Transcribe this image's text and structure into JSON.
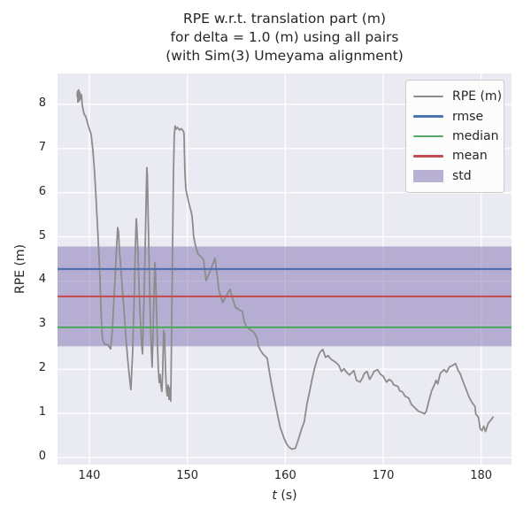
{
  "figure": {
    "title_line1": "RPE w.r.t. translation part (m)",
    "title_line2": "for delta = 1.0 (m) using all pairs",
    "title_line3": "(with Sim(3) Umeyama alignment)"
  },
  "axes": {
    "ylabel": "RPE (m)",
    "xlabel_italic": "t",
    "xlabel_suffix": " (s)",
    "x_ticks": [
      140,
      150,
      160,
      170,
      180
    ],
    "y_ticks": [
      0,
      1,
      2,
      3,
      4,
      5,
      6,
      7,
      8
    ]
  },
  "legend": {
    "items": [
      {
        "label": "RPE (m)",
        "color": "#8c8c8c",
        "kind": "line"
      },
      {
        "label": "rmse",
        "color": "#4c72b0",
        "kind": "line"
      },
      {
        "label": "median",
        "color": "#55a868",
        "kind": "line"
      },
      {
        "label": "mean",
        "color": "#c44e52",
        "kind": "line"
      },
      {
        "label": "std",
        "color": "rgba(129,114,178,0.55)",
        "kind": "patch"
      }
    ]
  },
  "colors": {
    "plot_bg": "#eaeaf2",
    "grid": "#ffffff",
    "band": "rgba(129,114,178,0.5)",
    "rpe": "#8c8c8c",
    "rmse": "#4c72b0",
    "median": "#55a868",
    "mean": "#c44e52",
    "text": "#262626"
  },
  "chart_data": {
    "type": "line",
    "title": "RPE w.r.t. translation part (m) for delta = 1.0 (m) using all pairs (with Sim(3) Umeyama alignment)",
    "xlabel": "t (s)",
    "ylabel": "RPE (m)",
    "xlim": [
      136.75,
      183.1
    ],
    "ylim": [
      -0.16,
      8.7
    ],
    "grid": true,
    "legend_position": "upper right",
    "stats": {
      "rmse": 4.27,
      "mean": 3.65,
      "median": 2.95,
      "std": 1.13
    },
    "series": [
      {
        "name": "rmse",
        "kind": "hline",
        "color": "#4c72b0",
        "value": 4.27
      },
      {
        "name": "median",
        "kind": "hline",
        "color": "#55a868",
        "value": 2.95
      },
      {
        "name": "mean",
        "kind": "hline",
        "color": "#c44e52",
        "value": 3.65
      },
      {
        "name": "std",
        "kind": "band",
        "color": "rgba(129,114,178,0.5)",
        "range": [
          2.52,
          4.78
        ]
      },
      {
        "name": "RPE (m)",
        "kind": "line",
        "color": "#8c8c8c",
        "points": [
          [
            138.74,
            8.18
          ],
          [
            138.79,
            8.3
          ],
          [
            138.83,
            8.05
          ],
          [
            138.88,
            8.25
          ],
          [
            138.92,
            8.33
          ],
          [
            138.97,
            8.08
          ],
          [
            139.01,
            8.28
          ],
          [
            139.1,
            8.12
          ],
          [
            139.19,
            8.22
          ],
          [
            139.28,
            7.97
          ],
          [
            139.46,
            7.78
          ],
          [
            139.64,
            7.72
          ],
          [
            139.91,
            7.5
          ],
          [
            140.18,
            7.32
          ],
          [
            140.36,
            6.95
          ],
          [
            140.54,
            6.45
          ],
          [
            140.63,
            6.1
          ],
          [
            140.81,
            5.35
          ],
          [
            140.99,
            4.55
          ],
          [
            141.08,
            4.1
          ],
          [
            141.17,
            3.5
          ],
          [
            141.26,
            2.95
          ],
          [
            141.35,
            2.68
          ],
          [
            141.54,
            2.57
          ],
          [
            141.72,
            2.56
          ],
          [
            141.9,
            2.56
          ],
          [
            141.99,
            2.52
          ],
          [
            142.17,
            2.46
          ],
          [
            142.35,
            2.9
          ],
          [
            142.44,
            3.3
          ],
          [
            142.62,
            4.05
          ],
          [
            142.8,
            4.85
          ],
          [
            142.89,
            5.21
          ],
          [
            142.98,
            5.1
          ],
          [
            143.07,
            4.7
          ],
          [
            143.25,
            4.2
          ],
          [
            143.52,
            3.4
          ],
          [
            143.7,
            2.8
          ],
          [
            143.97,
            2.1
          ],
          [
            144.15,
            1.7
          ],
          [
            144.24,
            1.54
          ],
          [
            144.42,
            2.4
          ],
          [
            144.6,
            3.8
          ],
          [
            144.7,
            4.8
          ],
          [
            144.79,
            5.41
          ],
          [
            144.83,
            5.3
          ],
          [
            144.97,
            4.6
          ],
          [
            145.06,
            3.9
          ],
          [
            145.15,
            3.4
          ],
          [
            145.33,
            2.6
          ],
          [
            145.42,
            2.35
          ],
          [
            145.6,
            3.8
          ],
          [
            145.74,
            5.2
          ],
          [
            145.87,
            6.57
          ],
          [
            145.92,
            6.4
          ],
          [
            146.05,
            5.0
          ],
          [
            146.14,
            4.0
          ],
          [
            146.23,
            3.1
          ],
          [
            146.32,
            2.5
          ],
          [
            146.41,
            2.05
          ],
          [
            146.5,
            2.8
          ],
          [
            146.59,
            3.6
          ],
          [
            146.68,
            4.42
          ],
          [
            146.73,
            4.3
          ],
          [
            146.86,
            3.3
          ],
          [
            146.95,
            2.6
          ],
          [
            147.04,
            2.0
          ],
          [
            147.13,
            1.7
          ],
          [
            147.22,
            1.88
          ],
          [
            147.31,
            1.62
          ],
          [
            147.4,
            1.5
          ],
          [
            147.49,
            2.0
          ],
          [
            147.58,
            2.88
          ],
          [
            147.67,
            2.8
          ],
          [
            147.77,
            2.0
          ],
          [
            147.86,
            1.55
          ],
          [
            147.95,
            1.4
          ],
          [
            148.04,
            1.64
          ],
          [
            148.13,
            1.32
          ],
          [
            148.22,
            1.58
          ],
          [
            148.31,
            1.28
          ],
          [
            148.4,
            2.8
          ],
          [
            148.49,
            4.6
          ],
          [
            148.58,
            6.3
          ],
          [
            148.67,
            7.3
          ],
          [
            148.76,
            7.51
          ],
          [
            148.85,
            7.44
          ],
          [
            148.99,
            7.48
          ],
          [
            149.21,
            7.42
          ],
          [
            149.39,
            7.45
          ],
          [
            149.57,
            7.4
          ],
          [
            149.66,
            7.35
          ],
          [
            149.75,
            6.5
          ],
          [
            149.84,
            6.1
          ],
          [
            149.93,
            5.99
          ],
          [
            150.11,
            5.81
          ],
          [
            150.29,
            5.65
          ],
          [
            150.47,
            5.49
          ],
          [
            150.56,
            5.29
          ],
          [
            150.65,
            5.01
          ],
          [
            150.83,
            4.81
          ],
          [
            151.1,
            4.61
          ],
          [
            151.38,
            4.55
          ],
          [
            151.65,
            4.49
          ],
          [
            151.92,
            4.01
          ],
          [
            152.37,
            4.25
          ],
          [
            152.82,
            4.51
          ],
          [
            153.0,
            4.2
          ],
          [
            153.18,
            3.89
          ],
          [
            153.27,
            3.75
          ],
          [
            153.63,
            3.51
          ],
          [
            153.99,
            3.67
          ],
          [
            154.36,
            3.81
          ],
          [
            154.63,
            3.59
          ],
          [
            154.9,
            3.41
          ],
          [
            155.26,
            3.35
          ],
          [
            155.62,
            3.31
          ],
          [
            155.8,
            3.09
          ],
          [
            156.07,
            2.95
          ],
          [
            156.34,
            2.91
          ],
          [
            156.61,
            2.87
          ],
          [
            156.88,
            2.81
          ],
          [
            157.15,
            2.69
          ],
          [
            157.24,
            2.53
          ],
          [
            157.42,
            2.45
          ],
          [
            157.7,
            2.35
          ],
          [
            157.88,
            2.31
          ],
          [
            158.15,
            2.25
          ],
          [
            158.42,
            1.89
          ],
          [
            158.69,
            1.55
          ],
          [
            158.96,
            1.25
          ],
          [
            159.23,
            0.95
          ],
          [
            159.5,
            0.67
          ],
          [
            159.86,
            0.45
          ],
          [
            160.13,
            0.31
          ],
          [
            160.4,
            0.23
          ],
          [
            160.68,
            0.19
          ],
          [
            161.04,
            0.21
          ],
          [
            161.31,
            0.39
          ],
          [
            161.67,
            0.65
          ],
          [
            161.94,
            0.81
          ],
          [
            162.21,
            1.21
          ],
          [
            162.48,
            1.49
          ],
          [
            162.75,
            1.79
          ],
          [
            163.02,
            2.05
          ],
          [
            163.29,
            2.25
          ],
          [
            163.56,
            2.39
          ],
          [
            163.84,
            2.45
          ],
          [
            164.11,
            2.27
          ],
          [
            164.38,
            2.31
          ],
          [
            164.65,
            2.23
          ],
          [
            164.92,
            2.19
          ],
          [
            165.19,
            2.15
          ],
          [
            165.46,
            2.09
          ],
          [
            165.73,
            1.95
          ],
          [
            166.0,
            2.01
          ],
          [
            166.27,
            1.93
          ],
          [
            166.55,
            1.87
          ],
          [
            166.82,
            1.93
          ],
          [
            167.0,
            1.97
          ],
          [
            167.27,
            1.75
          ],
          [
            167.63,
            1.71
          ],
          [
            167.9,
            1.81
          ],
          [
            168.08,
            1.91
          ],
          [
            168.35,
            1.95
          ],
          [
            168.62,
            1.77
          ],
          [
            168.89,
            1.87
          ],
          [
            169.07,
            1.95
          ],
          [
            169.43,
            1.99
          ],
          [
            169.7,
            1.89
          ],
          [
            169.97,
            1.85
          ],
          [
            170.34,
            1.71
          ],
          [
            170.61,
            1.77
          ],
          [
            170.88,
            1.73
          ],
          [
            171.06,
            1.65
          ],
          [
            171.51,
            1.61
          ],
          [
            171.69,
            1.51
          ],
          [
            171.96,
            1.49
          ],
          [
            172.23,
            1.39
          ],
          [
            172.59,
            1.35
          ],
          [
            172.86,
            1.21
          ],
          [
            173.13,
            1.15
          ],
          [
            173.59,
            1.05
          ],
          [
            174.04,
            1.01
          ],
          [
            174.22,
            0.99
          ],
          [
            174.4,
            1.05
          ],
          [
            174.67,
            1.29
          ],
          [
            174.94,
            1.51
          ],
          [
            175.3,
            1.69
          ],
          [
            175.39,
            1.75
          ],
          [
            175.57,
            1.67
          ],
          [
            175.84,
            1.91
          ],
          [
            176.2,
            1.99
          ],
          [
            176.48,
            1.93
          ],
          [
            176.75,
            2.05
          ],
          [
            177.11,
            2.09
          ],
          [
            177.38,
            2.13
          ],
          [
            177.65,
            1.97
          ],
          [
            177.83,
            1.91
          ],
          [
            178.1,
            1.75
          ],
          [
            178.46,
            1.55
          ],
          [
            178.73,
            1.39
          ],
          [
            178.91,
            1.31
          ],
          [
            179.18,
            1.21
          ],
          [
            179.36,
            1.17
          ],
          [
            179.45,
            0.99
          ],
          [
            179.72,
            0.91
          ],
          [
            179.9,
            0.65
          ],
          [
            180.08,
            0.61
          ],
          [
            180.26,
            0.71
          ],
          [
            180.44,
            0.59
          ],
          [
            180.71,
            0.77
          ],
          [
            181.07,
            0.87
          ],
          [
            181.25,
            0.93
          ]
        ]
      }
    ]
  }
}
